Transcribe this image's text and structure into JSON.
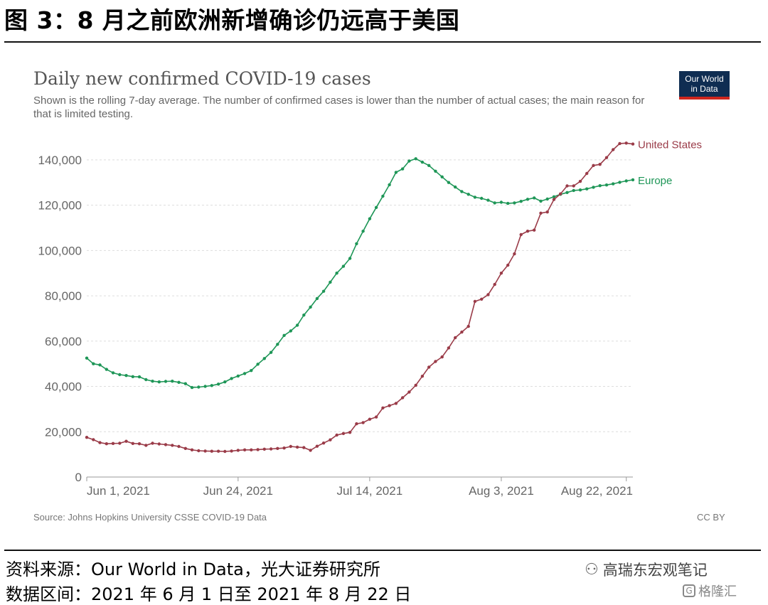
{
  "figure_title": "图 3：8 月之前欧洲新增确诊仍远高于美国",
  "chart_data": {
    "type": "line",
    "title": "Daily new confirmed COVID-19 cases",
    "subtitle": "Shown is the rolling 7-day average. The number of confirmed cases is lower than the number of actual cases; the main reason for that is limited testing.",
    "source": "Source: Johns Hopkins University CSSE COVID-19 Data",
    "license": "CC BY",
    "logo": [
      "Our World",
      "in Data"
    ],
    "x_start": "2021-06-01",
    "x_ticks": [
      {
        "label": "Jun 1, 2021",
        "day": 0
      },
      {
        "label": "Jun 24, 2021",
        "day": 23
      },
      {
        "label": "Jul 14, 2021",
        "day": 43
      },
      {
        "label": "Aug 3, 2021",
        "day": 63
      },
      {
        "label": "Aug 22, 2021",
        "day": 82
      }
    ],
    "y_ticks": [
      0,
      20000,
      40000,
      60000,
      80000,
      100000,
      120000,
      140000
    ],
    "y_tick_labels": [
      "0",
      "20,000",
      "40,000",
      "60,000",
      "80,000",
      "100,000",
      "120,000",
      "140,000"
    ],
    "ylim": [
      0,
      150000
    ],
    "xlim_days": [
      0,
      83
    ],
    "grid": "horizontal dashed",
    "series": [
      {
        "name": "Europe",
        "color": "#1e9657",
        "values": [
          52500,
          50000,
          49500,
          47500,
          46000,
          45200,
          44800,
          44300,
          44200,
          43000,
          42300,
          42000,
          42200,
          42300,
          41800,
          41200,
          39500,
          39700,
          40000,
          40400,
          41000,
          42000,
          43500,
          44600,
          45700,
          47000,
          49800,
          52300,
          55000,
          58600,
          62500,
          64500,
          67000,
          71500,
          75000,
          78800,
          82000,
          86000,
          90000,
          93000,
          96500,
          103000,
          108500,
          114000,
          119000,
          124000,
          129000,
          134500,
          136000,
          139500,
          140500,
          139000,
          137500,
          135000,
          132500,
          130000,
          128000,
          126000,
          124800,
          123500,
          123000,
          122200,
          121000,
          121300,
          120800,
          121000,
          121700,
          122600,
          123200,
          121800,
          122700,
          123700,
          124800,
          125600,
          126500,
          126700,
          127200,
          127900,
          128600,
          128900,
          129400,
          130100,
          130700,
          131200
        ]
      },
      {
        "name": "United States",
        "color": "#9a3b48",
        "values": [
          17500,
          16500,
          15200,
          14700,
          14800,
          14900,
          15800,
          14800,
          14700,
          14000,
          14900,
          14600,
          14300,
          14000,
          13500,
          12600,
          12000,
          11600,
          11500,
          11400,
          11400,
          11300,
          11500,
          11800,
          12000,
          12000,
          12100,
          12300,
          12400,
          12600,
          12800,
          13500,
          13200,
          13000,
          11800,
          13600,
          15000,
          16400,
          18500,
          19200,
          19700,
          23500,
          24000,
          25500,
          26500,
          30500,
          31500,
          32500,
          35000,
          37500,
          40500,
          44500,
          48500,
          51000,
          53000,
          57000,
          61500,
          64000,
          66500,
          77500,
          78500,
          80500,
          85000,
          90000,
          93500,
          98500,
          107000,
          108500,
          109000,
          116500,
          117000,
          122500,
          125000,
          128500,
          128500,
          130500,
          134000,
          137500,
          138000,
          141000,
          144500,
          147200,
          147400,
          147000
        ]
      }
    ]
  },
  "footer": {
    "source_line": "资料来源：Our World in Data，光大证券研究所",
    "range_line": "数据区间：2021 年 6 月 1 日至 2021 年 8 月 22 日",
    "watermark": "高瑞东宏观笔记",
    "watermark_2": "格隆汇"
  }
}
